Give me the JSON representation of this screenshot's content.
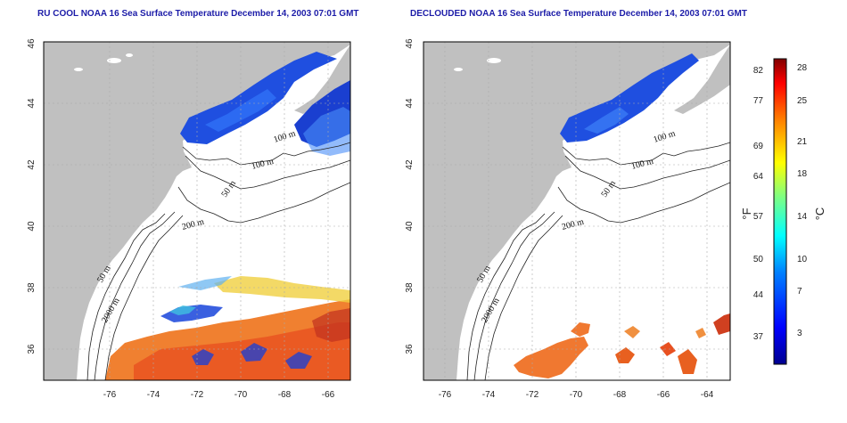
{
  "left_panel": {
    "title": "RU COOL NOAA 16 Sea Surface Temperature December 14, 2003 07:01 GMT",
    "contour_labels": [
      "100 m",
      "100 m",
      "50 m",
      "200 m",
      "50 m",
      "2000 m"
    ]
  },
  "right_panel": {
    "title": "DECLOUDED NOAA 16 Sea Surface Temperature December 14, 2003 07:01 GMT",
    "contour_labels": [
      "100 m",
      "100 m",
      "50 m",
      "200 m",
      "50 m",
      "2000 m"
    ]
  },
  "axes": {
    "lon_ticks": [
      "-76",
      "-74",
      "-72",
      "-70",
      "-68",
      "-66",
      "-64"
    ],
    "lat_ticks": [
      "36",
      "38",
      "40",
      "42",
      "44",
      "46"
    ]
  },
  "colorbar": {
    "fahrenheit_unit": "°F",
    "celsius_unit": "°C",
    "fahrenheit_ticks": [
      "82",
      "77",
      "69",
      "64",
      "57",
      "50",
      "44",
      "37"
    ],
    "celsius_ticks": [
      "28",
      "25",
      "21",
      "18",
      "14",
      "10",
      "7",
      "3"
    ]
  },
  "colors": {
    "land": "#c0c0c0",
    "ocean_no_data": "#ffffff",
    "title": "#1c1ca8",
    "grid": "#aaaaaa"
  }
}
